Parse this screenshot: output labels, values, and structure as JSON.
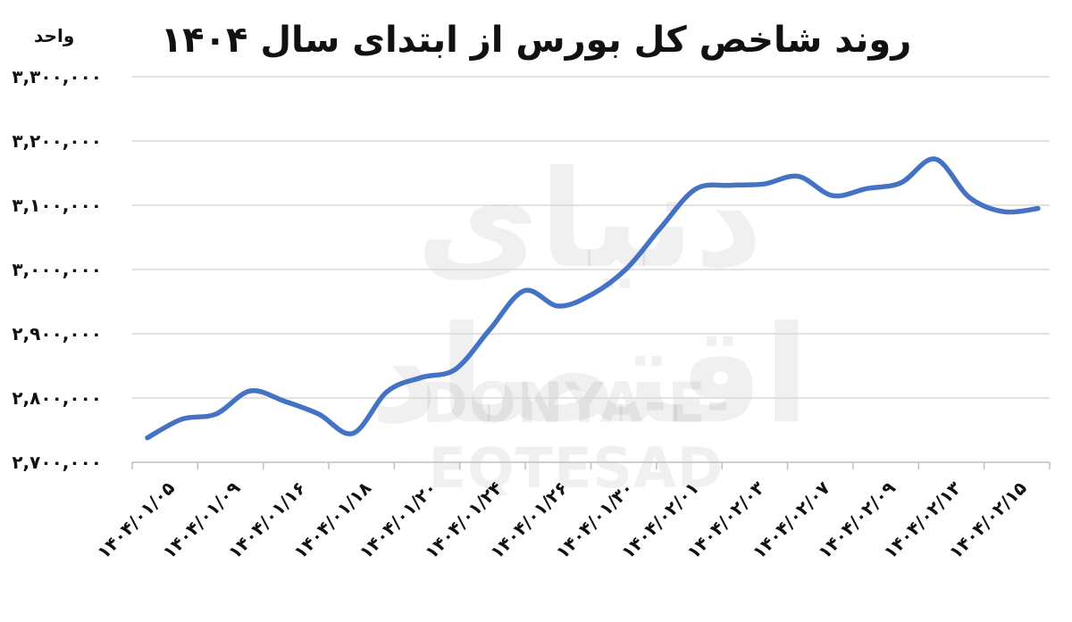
{
  "chart_data": {
    "type": "line",
    "title": "روند شاخص کل بورس از ابتدای سال ۱۴۰۴",
    "ylabel": "واحد",
    "watermark_fa": "دنیای اقتصاد",
    "watermark_en": "DONYA-E-EQTESAD",
    "ylim": [
      2700000,
      3300000
    ],
    "yticks": [
      2700000,
      2800000,
      2900000,
      3000000,
      3100000,
      3200000,
      3300000
    ],
    "ytick_labels": [
      "۲,۷۰۰,۰۰۰",
      "۲,۸۰۰,۰۰۰",
      "۲,۹۰۰,۰۰۰",
      "۳,۰۰۰,۰۰۰",
      "۳,۱۰۰,۰۰۰",
      "۳,۲۰۰,۰۰۰",
      "۳,۳۰۰,۰۰۰"
    ],
    "xtick_labels": [
      "۱۴۰۴/۰۱/۰۵",
      "۱۴۰۴/۰۱/۰۹",
      "۱۴۰۴/۰۱/۱۶",
      "۱۴۰۴/۰۱/۱۸",
      "۱۴۰۴/۰۱/۲۰",
      "۱۴۰۴/۰۱/۲۴",
      "۱۴۰۴/۰۱/۲۶",
      "۱۴۰۴/۰۱/۳۰",
      "۱۴۰۴/۰۲/۰۱",
      "۱۴۰۴/۰۲/۰۳",
      "۱۴۰۴/۰۲/۰۷",
      "۱۴۰۴/۰۲/۰۹",
      "۱۴۰۴/۰۲/۱۳",
      "۱۴۰۴/۰۲/۱۵"
    ],
    "series": [
      {
        "color": "#4472C4",
        "values": [
          2738000,
          2767000,
          2775000,
          2811000,
          2795000,
          2775000,
          2745000,
          2810000,
          2832000,
          2845000,
          2907000,
          2967000,
          2943000,
          2962000,
          3002000,
          3066000,
          3125000,
          3131000,
          3133000,
          3145000,
          3115000,
          3126000,
          3135000,
          3172000,
          3112000,
          3090000,
          3095000
        ]
      }
    ],
    "grid": true,
    "legend": "none"
  }
}
